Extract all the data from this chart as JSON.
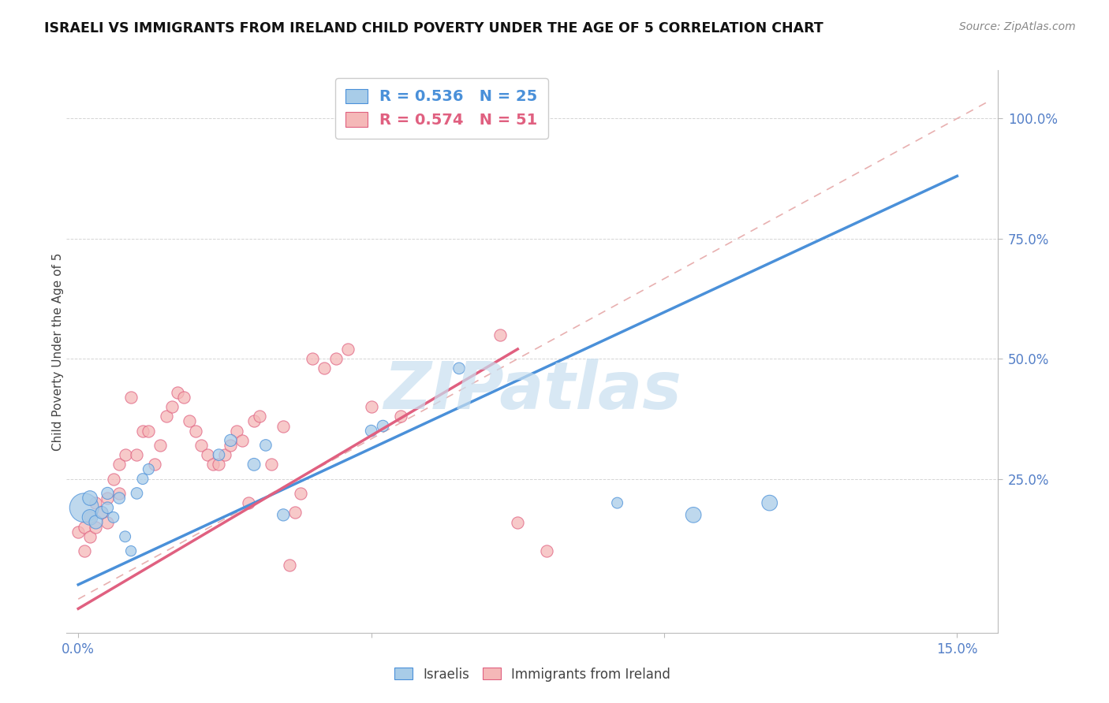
{
  "title": "ISRAELI VS IMMIGRANTS FROM IRELAND CHILD POVERTY UNDER THE AGE OF 5 CORRELATION CHART",
  "source": "Source: ZipAtlas.com",
  "ylabel": "Child Poverty Under the Age of 5",
  "watermark": "ZIPatlas",
  "color_israeli": "#a8cce8",
  "color_ireland": "#f5b8b8",
  "color_line_israeli": "#4a90d9",
  "color_line_ireland": "#e06080",
  "legend_label_israeli": "R = 0.536   N = 25",
  "legend_label_ireland": "R = 0.574   N = 51",
  "legend_color_isr": "#4a90d9",
  "legend_color_irl": "#e06080",
  "ytick_vals": [
    0.25,
    0.5,
    0.75,
    1.0
  ],
  "ytick_labels": [
    "25.0%",
    "50.0%",
    "75.0%",
    "100.0%"
  ],
  "xlim": [
    -0.002,
    0.157
  ],
  "ylim": [
    -0.07,
    1.1
  ],
  "isr_line_x": [
    0.0,
    0.15
  ],
  "isr_line_y": [
    0.03,
    0.88
  ],
  "irl_line_x": [
    0.0,
    0.075
  ],
  "irl_line_y": [
    -0.02,
    0.52
  ],
  "refline_x": [
    0.0,
    0.155
  ],
  "refline_y": [
    0.0,
    1.033
  ],
  "israeli_x": [
    0.001,
    0.002,
    0.002,
    0.003,
    0.004,
    0.005,
    0.005,
    0.006,
    0.007,
    0.008,
    0.009,
    0.01,
    0.011,
    0.012,
    0.024,
    0.026,
    0.03,
    0.032,
    0.035,
    0.05,
    0.052,
    0.065,
    0.092,
    0.105,
    0.118
  ],
  "israeli_y": [
    0.19,
    0.17,
    0.21,
    0.16,
    0.18,
    0.22,
    0.19,
    0.17,
    0.21,
    0.13,
    0.1,
    0.22,
    0.25,
    0.27,
    0.3,
    0.33,
    0.28,
    0.32,
    0.175,
    0.35,
    0.36,
    0.48,
    0.2,
    0.175,
    0.2
  ],
  "israeli_sizes": [
    700,
    200,
    180,
    150,
    130,
    120,
    110,
    100,
    110,
    100,
    90,
    110,
    100,
    100,
    110,
    120,
    130,
    110,
    120,
    110,
    110,
    110,
    100,
    200,
    200
  ],
  "ireland_x": [
    0.0,
    0.001,
    0.001,
    0.002,
    0.002,
    0.003,
    0.003,
    0.004,
    0.005,
    0.005,
    0.006,
    0.007,
    0.007,
    0.008,
    0.009,
    0.01,
    0.011,
    0.012,
    0.013,
    0.014,
    0.015,
    0.016,
    0.017,
    0.018,
    0.019,
    0.02,
    0.021,
    0.022,
    0.023,
    0.024,
    0.025,
    0.026,
    0.027,
    0.028,
    0.029,
    0.03,
    0.031,
    0.033,
    0.035,
    0.036,
    0.037,
    0.038,
    0.04,
    0.042,
    0.044,
    0.046,
    0.05,
    0.055,
    0.072,
    0.075,
    0.08
  ],
  "ireland_y": [
    0.14,
    0.1,
    0.15,
    0.13,
    0.17,
    0.15,
    0.2,
    0.18,
    0.16,
    0.21,
    0.25,
    0.22,
    0.28,
    0.3,
    0.42,
    0.3,
    0.35,
    0.35,
    0.28,
    0.32,
    0.38,
    0.4,
    0.43,
    0.42,
    0.37,
    0.35,
    0.32,
    0.3,
    0.28,
    0.28,
    0.3,
    0.32,
    0.35,
    0.33,
    0.2,
    0.37,
    0.38,
    0.28,
    0.36,
    0.07,
    0.18,
    0.22,
    0.5,
    0.48,
    0.5,
    0.52,
    0.4,
    0.38,
    0.55,
    0.16,
    0.1
  ]
}
